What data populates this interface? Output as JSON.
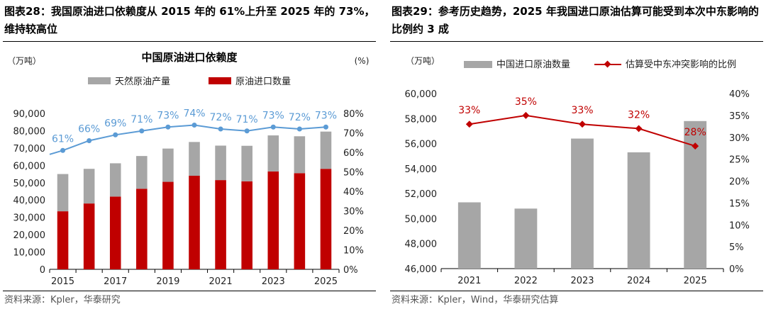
{
  "left": {
    "figure_title": "图表28：我国原油进口依赖度从 2015 年的 61%上升至 2025 年的 73%，维持较高位",
    "source": "资料来源：Kpler，华泰研究",
    "colors": {
      "production": "#a6a6a6",
      "imports": "#c00000",
      "dependency": "#5b9bd5"
    }
  },
  "right": {
    "figure_title": "图表29：参考历史趋势，2025 年我国进口原油估算可能受到本次中东影响的比例约 3 成",
    "source": "资料来源：Kpler，Wind，华泰研究估算",
    "colors": {
      "imports": "#a6a6a6",
      "ratio": "#c00000"
    }
  },
  "chart_data": [
    {
      "type": "bar+line",
      "title": "中国原油进口依赖度",
      "left_unit": "（万吨）",
      "right_unit": "(%)",
      "years": [
        2015,
        2016,
        2017,
        2018,
        2019,
        2020,
        2021,
        2022,
        2023,
        2024,
        2025
      ],
      "x_tick_labels": [
        "2015",
        "2017",
        "2019",
        "2021",
        "2023",
        "2025"
      ],
      "stacked": true,
      "series": [
        {
          "name": "原油进口数量",
          "kind": "bar",
          "axis": "left",
          "values": [
            33500,
            38000,
            42000,
            46500,
            50500,
            54000,
            51500,
            50800,
            56500,
            55500,
            58000
          ]
        },
        {
          "name": "天然原油产量",
          "kind": "bar",
          "axis": "left",
          "values": [
            21500,
            20000,
            19200,
            18900,
            19200,
            19500,
            19900,
            20500,
            20800,
            21300,
            21500
          ]
        },
        {
          "name": "",
          "kind": "line",
          "axis": "right",
          "values": [
            61,
            66,
            69,
            71,
            73,
            74,
            72,
            71,
            73,
            72,
            73
          ],
          "labels": [
            "61%",
            "66%",
            "69%",
            "71%",
            "73%",
            "74%",
            "72%",
            "71%",
            "73%",
            "72%",
            "73%"
          ]
        }
      ],
      "line_start_left_edge": 59,
      "y_left": {
        "min": 0,
        "max": 90000,
        "step": 10000,
        "tick_labels": [
          "0",
          "10,000",
          "20,000",
          "30,000",
          "40,000",
          "50,000",
          "60,000",
          "70,000",
          "80,000",
          "90,000"
        ]
      },
      "y_right": {
        "min": 0,
        "max": 80,
        "step": 10,
        "tick_labels": [
          "0%",
          "10%",
          "20%",
          "30%",
          "40%",
          "50%",
          "60%",
          "70%",
          "80%"
        ]
      },
      "legend_position": "top-center"
    },
    {
      "type": "bar+line",
      "left_unit": "（万吨）",
      "years": [
        2021,
        2022,
        2023,
        2024,
        2025
      ],
      "x_tick_labels": [
        "2021",
        "2022",
        "2023",
        "2024",
        "2025"
      ],
      "series": [
        {
          "name": "中国进口原油数量",
          "kind": "bar",
          "axis": "left",
          "values": [
            51300,
            50800,
            56400,
            55300,
            57800
          ]
        },
        {
          "name": "估算受中东冲突影响的比例",
          "kind": "line",
          "axis": "right",
          "values": [
            33,
            35,
            33,
            32,
            28
          ],
          "labels": [
            "33%",
            "35%",
            "33%",
            "32%",
            "28%"
          ]
        }
      ],
      "y_left": {
        "min": 46000,
        "max": 60000,
        "step": 2000,
        "tick_labels": [
          "46,000",
          "48,000",
          "50,000",
          "52,000",
          "54,000",
          "56,000",
          "58,000",
          "60,000"
        ]
      },
      "y_right": {
        "min": 0,
        "max": 40,
        "step": 5,
        "tick_labels": [
          "0%",
          "5%",
          "10%",
          "15%",
          "20%",
          "25%",
          "30%",
          "35%",
          "40%"
        ]
      },
      "legend_position": "top-center"
    }
  ]
}
